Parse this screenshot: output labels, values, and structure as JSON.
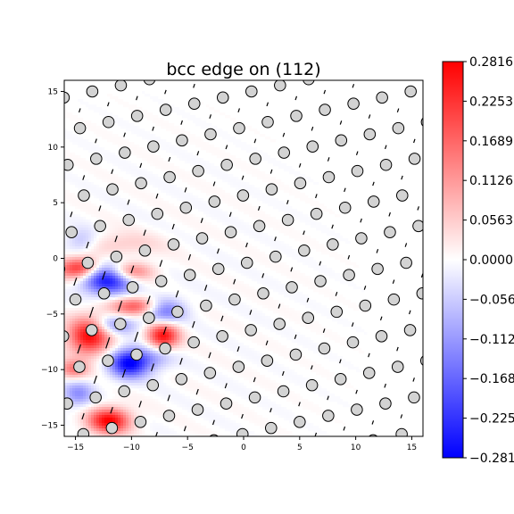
{
  "chart_data": {
    "type": "heatmap",
    "title": "bcc edge on (112)",
    "xlabel": "",
    "ylabel": "",
    "xlim": [
      -16,
      16
    ],
    "ylim": [
      -16,
      16
    ],
    "x_ticks": [
      -15,
      -10,
      -5,
      0,
      5,
      10,
      15
    ],
    "y_ticks": [
      -15,
      -10,
      -5,
      0,
      5,
      10,
      15
    ],
    "colormap": "bwr",
    "colors": {
      "min": "#0000ff",
      "mid": "#ffffff",
      "max": "#ff0000",
      "atom_fill": "#d3d3d3",
      "atom_edge": "#000000"
    },
    "colorbar": {
      "min": -0.2816,
      "max": 0.2816,
      "tick_labels": [
        "0.2816",
        "0.2253",
        "0.1689",
        "0.1126",
        "0.0563",
        "0.0000",
        "-0.0563",
        "-0.1126",
        "-0.1689",
        "-0.2253",
        "-0.2816"
      ]
    },
    "lattice": {
      "a1": [
        2.55,
        0.55
      ],
      "a2": [
        -1.45,
        2.75
      ],
      "displacement_arrow_scale": 0.5
    },
    "field_blobs": [
      {
        "x": -12.2,
        "y": -1.8,
        "value": -0.28,
        "sx": 1.6,
        "sy": 1.0
      },
      {
        "x": -14.6,
        "y": -0.9,
        "value": 0.26,
        "sx": 1.3,
        "sy": 0.7
      },
      {
        "x": -10.2,
        "y": -1.2,
        "value": 0.18,
        "sx": 1.4,
        "sy": 0.6
      },
      {
        "x": -9.3,
        "y": -4.3,
        "value": 0.2,
        "sx": 1.7,
        "sy": 0.6
      },
      {
        "x": -7.2,
        "y": -4.6,
        "value": -0.19,
        "sx": 1.3,
        "sy": 0.8
      },
      {
        "x": -13.8,
        "y": -7.0,
        "value": 0.27,
        "sx": 1.3,
        "sy": 1.2
      },
      {
        "x": -11.6,
        "y": -6.0,
        "value": -0.12,
        "sx": 1.4,
        "sy": 0.6
      },
      {
        "x": -7.2,
        "y": -7.0,
        "value": 0.26,
        "sx": 1.0,
        "sy": 0.8
      },
      {
        "x": -10.2,
        "y": -9.4,
        "value": -0.28,
        "sx": 1.2,
        "sy": 0.9
      },
      {
        "x": -12.0,
        "y": -14.6,
        "value": 0.28,
        "sx": 1.3,
        "sy": 0.8
      },
      {
        "x": -14.8,
        "y": -12.2,
        "value": -0.12,
        "sx": 1.0,
        "sy": 0.8
      },
      {
        "x": -15.2,
        "y": -10.0,
        "value": 0.14,
        "sx": 0.9,
        "sy": 0.6
      },
      {
        "x": -11.0,
        "y": 1.2,
        "value": 0.06,
        "sx": 2.5,
        "sy": 0.8
      },
      {
        "x": -14.5,
        "y": 1.5,
        "value": -0.08,
        "sx": 1.0,
        "sy": 0.8
      },
      {
        "x": -8.0,
        "y": -9.0,
        "value": -0.08,
        "sx": 1.2,
        "sy": 0.8
      }
    ]
  }
}
